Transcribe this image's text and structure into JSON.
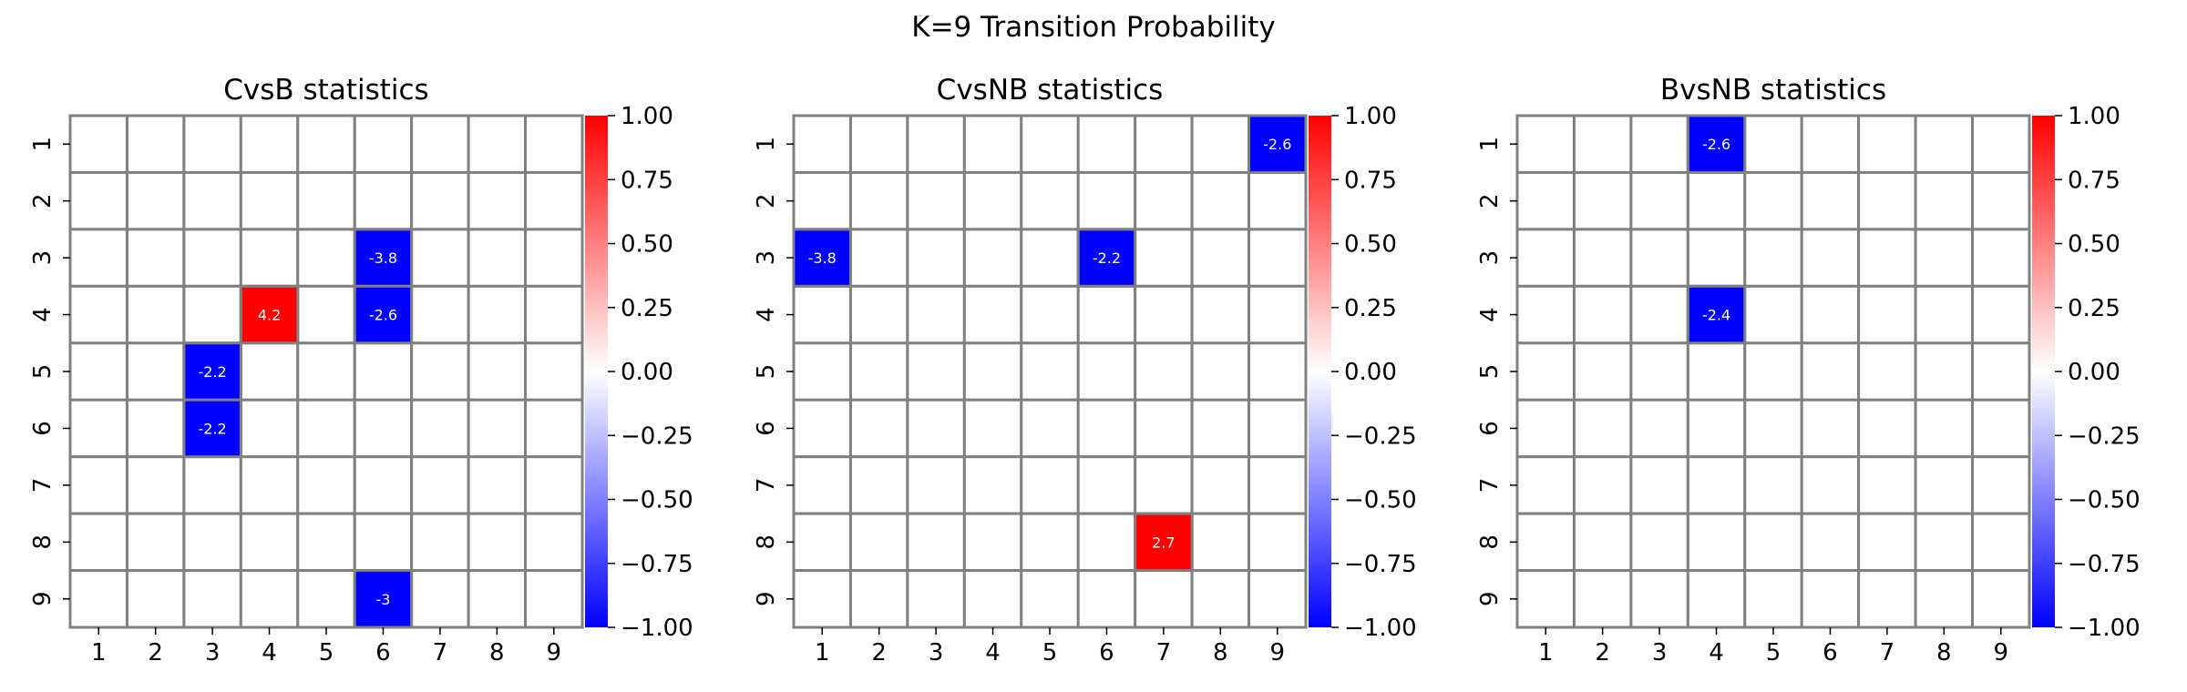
{
  "suptitle": "K=9 Transition Probability",
  "colorbar": {
    "vmin": -1.0,
    "vmax": 1.0,
    "ticks": [
      "1.00",
      "0.75",
      "0.50",
      "0.25",
      "0.00",
      "−0.25",
      "−0.50",
      "−0.75",
      "−1.00"
    ],
    "colors": {
      "negative": "#0000ff",
      "zero": "#ffffff",
      "positive": "#ff0000"
    }
  },
  "chart_data": [
    {
      "type": "heatmap",
      "title": "CvsB statistics",
      "rows": [
        "1",
        "2",
        "3",
        "4",
        "5",
        "6",
        "7",
        "8",
        "9"
      ],
      "cols": [
        "1",
        "2",
        "3",
        "4",
        "5",
        "6",
        "7",
        "8",
        "9"
      ],
      "cells": [
        {
          "row": 3,
          "col": 6,
          "value": -3.8,
          "label": "-3.8"
        },
        {
          "row": 4,
          "col": 4,
          "value": 4.2,
          "label": "4.2"
        },
        {
          "row": 4,
          "col": 6,
          "value": -2.6,
          "label": "-2.6"
        },
        {
          "row": 5,
          "col": 3,
          "value": -2.2,
          "label": "-2.2"
        },
        {
          "row": 6,
          "col": 3,
          "value": -2.2,
          "label": "-2.2"
        },
        {
          "row": 9,
          "col": 6,
          "value": -3,
          "label": "-3"
        }
      ],
      "vmin": -1.0,
      "vmax": 1.0
    },
    {
      "type": "heatmap",
      "title": "CvsNB statistics",
      "rows": [
        "1",
        "2",
        "3",
        "4",
        "5",
        "6",
        "7",
        "8",
        "9"
      ],
      "cols": [
        "1",
        "2",
        "3",
        "4",
        "5",
        "6",
        "7",
        "8",
        "9"
      ],
      "cells": [
        {
          "row": 1,
          "col": 9,
          "value": -2.6,
          "label": "-2.6"
        },
        {
          "row": 3,
          "col": 1,
          "value": -3.8,
          "label": "-3.8"
        },
        {
          "row": 3,
          "col": 6,
          "value": -2.2,
          "label": "-2.2"
        },
        {
          "row": 8,
          "col": 7,
          "value": 2.7,
          "label": "2.7"
        }
      ],
      "vmin": -1.0,
      "vmax": 1.0
    },
    {
      "type": "heatmap",
      "title": "BvsNB statistics",
      "rows": [
        "1",
        "2",
        "3",
        "4",
        "5",
        "6",
        "7",
        "8",
        "9"
      ],
      "cols": [
        "1",
        "2",
        "3",
        "4",
        "5",
        "6",
        "7",
        "8",
        "9"
      ],
      "cells": [
        {
          "row": 1,
          "col": 4,
          "value": -2.6,
          "label": "-2.6"
        },
        {
          "row": 4,
          "col": 4,
          "value": -2.4,
          "label": "-2.4"
        }
      ],
      "vmin": -1.0,
      "vmax": 1.0
    }
  ]
}
